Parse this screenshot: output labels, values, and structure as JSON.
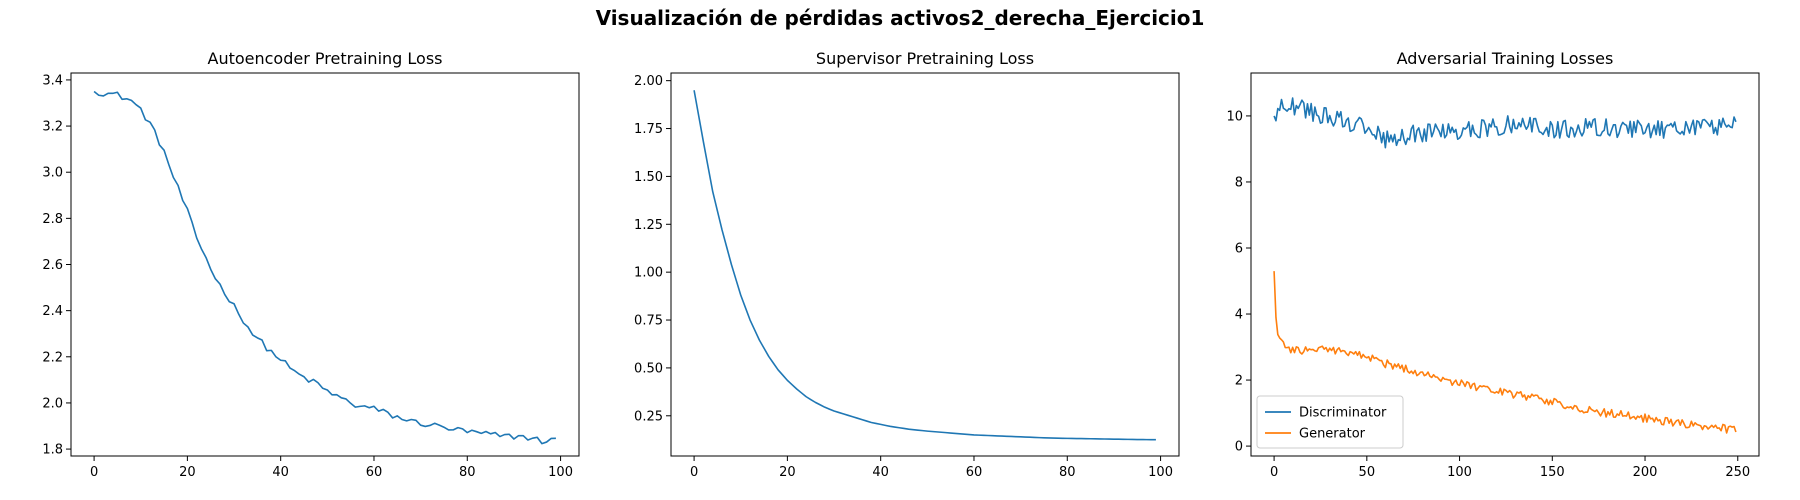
{
  "figure": {
    "suptitle": "Visualización de pérdidas activos2_derecha_Ejercicio1"
  },
  "chart_data": [
    {
      "type": "line",
      "title": "Autoencoder Pretraining Loss",
      "xlim": [
        -4.95,
        103.95
      ],
      "ylim": [
        1.77,
        3.43
      ],
      "xticks": [
        0,
        20,
        40,
        60,
        80,
        100
      ],
      "yticks": [
        1.8,
        2.0,
        2.2,
        2.4,
        2.6,
        2.8,
        3.0,
        3.2,
        3.4
      ],
      "ytick_decimals": 1,
      "grid": false,
      "series": [
        {
          "color": "#1f77b4",
          "keypoints": [
            [
              0,
              3.35
            ],
            [
              5,
              3.335
            ],
            [
              8,
              3.31
            ],
            [
              10,
              3.27
            ],
            [
              12,
              3.21
            ],
            [
              15,
              3.09
            ],
            [
              17,
              2.98
            ],
            [
              20,
              2.83
            ],
            [
              22,
              2.71
            ],
            [
              24,
              2.63
            ],
            [
              26,
              2.54
            ],
            [
              28,
              2.48
            ],
            [
              30,
              2.42
            ],
            [
              32,
              2.36
            ],
            [
              34,
              2.3
            ],
            [
              36,
              2.26
            ],
            [
              38,
              2.22
            ],
            [
              40,
              2.19
            ],
            [
              42,
              2.15
            ],
            [
              44,
              2.12
            ],
            [
              46,
              2.1
            ],
            [
              48,
              2.08
            ],
            [
              50,
              2.05
            ],
            [
              53,
              2.02
            ],
            [
              56,
              1.99
            ],
            [
              60,
              1.975
            ],
            [
              64,
              1.945
            ],
            [
              68,
              1.92
            ],
            [
              72,
              1.905
            ],
            [
              76,
              1.89
            ],
            [
              80,
              1.875
            ],
            [
              84,
              1.865
            ],
            [
              88,
              1.855
            ],
            [
              92,
              1.855
            ],
            [
              96,
              1.835
            ],
            [
              99,
              1.84
            ]
          ],
          "noise": 0.014
        }
      ]
    },
    {
      "type": "line",
      "title": "Supervisor Pretraining Loss",
      "xlim": [
        -4.95,
        103.95
      ],
      "ylim": [
        0.04,
        2.04
      ],
      "xticks": [
        0,
        20,
        40,
        60,
        80,
        100
      ],
      "yticks": [
        0.25,
        0.5,
        0.75,
        1.0,
        1.25,
        1.5,
        1.75,
        2.0
      ],
      "ytick_decimals": 2,
      "grid": false,
      "series": [
        {
          "color": "#1f77b4",
          "keypoints": [
            [
              0,
              1.95
            ],
            [
              2,
              1.68
            ],
            [
              4,
              1.42
            ],
            [
              6,
              1.22
            ],
            [
              8,
              1.04
            ],
            [
              10,
              0.88
            ],
            [
              12,
              0.75
            ],
            [
              14,
              0.645
            ],
            [
              16,
              0.56
            ],
            [
              18,
              0.49
            ],
            [
              20,
              0.435
            ],
            [
              22,
              0.39
            ],
            [
              24,
              0.35
            ],
            [
              26,
              0.32
            ],
            [
              28,
              0.295
            ],
            [
              30,
              0.275
            ],
            [
              34,
              0.245
            ],
            [
              38,
              0.215
            ],
            [
              42,
              0.195
            ],
            [
              46,
              0.18
            ],
            [
              50,
              0.17
            ],
            [
              55,
              0.16
            ],
            [
              60,
              0.15
            ],
            [
              65,
              0.145
            ],
            [
              70,
              0.14
            ],
            [
              75,
              0.135
            ],
            [
              80,
              0.132
            ],
            [
              85,
              0.13
            ],
            [
              90,
              0.128
            ],
            [
              95,
              0.126
            ],
            [
              99,
              0.125
            ]
          ],
          "noise": 0.0
        }
      ]
    },
    {
      "type": "line",
      "title": "Adversarial Training Losses",
      "xlim": [
        -12.45,
        261.45
      ],
      "ylim": [
        -0.3,
        11.3
      ],
      "xticks": [
        0,
        50,
        100,
        150,
        200,
        250
      ],
      "yticks": [
        0,
        2,
        4,
        6,
        8,
        10
      ],
      "ytick_decimals": 0,
      "grid": false,
      "legend": {
        "placement": "lower-left"
      },
      "series": [
        {
          "name": "Discriminator",
          "color": "#1f77b4",
          "keypoints": [
            [
              0,
              10.0
            ],
            [
              5,
              10.4
            ],
            [
              10,
              10.3
            ],
            [
              20,
              10.1
            ],
            [
              30,
              9.95
            ],
            [
              40,
              9.8
            ],
            [
              50,
              9.6
            ],
            [
              60,
              9.3
            ],
            [
              70,
              9.4
            ],
            [
              80,
              9.5
            ],
            [
              100,
              9.55
            ],
            [
              130,
              9.75
            ],
            [
              150,
              9.6
            ],
            [
              170,
              9.65
            ],
            [
              200,
              9.6
            ],
            [
              220,
              9.55
            ],
            [
              249,
              9.75
            ]
          ],
          "noise": 0.28
        },
        {
          "name": "Generator",
          "color": "#ff7f0e",
          "keypoints": [
            [
              0,
              5.3
            ],
            [
              1,
              4.0
            ],
            [
              2,
              3.4
            ],
            [
              4,
              3.1
            ],
            [
              8,
              2.95
            ],
            [
              15,
              2.9
            ],
            [
              25,
              2.95
            ],
            [
              35,
              2.85
            ],
            [
              50,
              2.7
            ],
            [
              60,
              2.5
            ],
            [
              70,
              2.35
            ],
            [
              80,
              2.2
            ],
            [
              100,
              1.9
            ],
            [
              120,
              1.65
            ],
            [
              140,
              1.45
            ],
            [
              160,
              1.2
            ],
            [
              180,
              1.0
            ],
            [
              200,
              0.85
            ],
            [
              220,
              0.7
            ],
            [
              240,
              0.55
            ],
            [
              249,
              0.5
            ]
          ],
          "noise": 0.13
        }
      ]
    }
  ]
}
